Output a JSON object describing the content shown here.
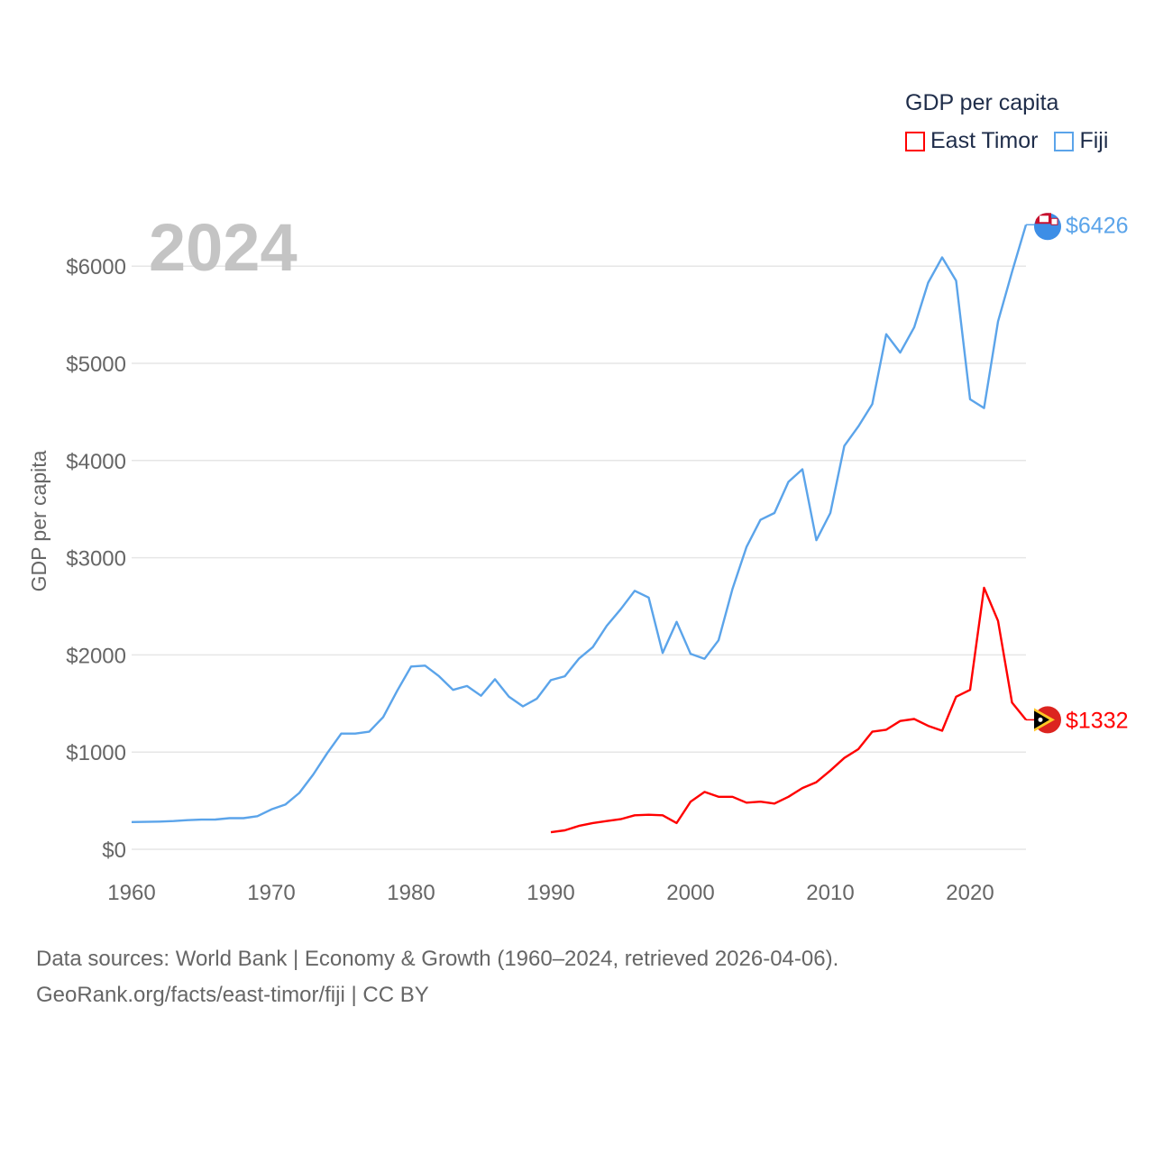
{
  "chart_data": {
    "type": "line",
    "title": "GDP per capita",
    "ylabel": "GDP per capita",
    "xlabel": "",
    "year_label": "2024",
    "xlim": [
      1960,
      2024
    ],
    "ylim": [
      0,
      6500
    ],
    "x_ticks": [
      "1960",
      "1970",
      "1980",
      "1990",
      "2000",
      "2010",
      "2020"
    ],
    "y_ticks": [
      "$0",
      "$1000",
      "$2000",
      "$3000",
      "$4000",
      "$5000",
      "$6000"
    ],
    "grid": true,
    "legend_placement": "top-right",
    "series": [
      {
        "name": "East Timor",
        "color": "#ff0000",
        "start_year": 1990,
        "end_label": "$1332",
        "values": [
          175,
          195,
          240,
          270,
          290,
          310,
          350,
          355,
          350,
          270,
          490,
          590,
          540,
          540,
          480,
          490,
          470,
          540,
          630,
          690,
          810,
          940,
          1030,
          1210,
          1230,
          1320,
          1340,
          1270,
          1220,
          1570,
          1640,
          2690,
          2350,
          1510,
          1332
        ]
      },
      {
        "name": "Fiji",
        "color": "#5ba4ea",
        "start_year": 1960,
        "end_label": "$6426",
        "values": [
          280,
          282,
          285,
          290,
          300,
          305,
          306,
          320,
          320,
          340,
          410,
          460,
          580,
          770,
          990,
          1190,
          1190,
          1210,
          1360,
          1630,
          1880,
          1890,
          1780,
          1640,
          1680,
          1580,
          1750,
          1570,
          1470,
          1550,
          1740,
          1780,
          1960,
          2080,
          2300,
          2470,
          2660,
          2590,
          2020,
          2340,
          2010,
          1960,
          2150,
          2680,
          3110,
          3390,
          3460,
          3780,
          3910,
          3180,
          3460,
          4150,
          4350,
          4580,
          5300,
          5110,
          5370,
          5830,
          6090,
          5850,
          4630,
          4540,
          5430,
          5940,
          6426
        ]
      }
    ]
  },
  "legend": {
    "title": "GDP per capita",
    "items": [
      "East Timor",
      "Fiji"
    ]
  },
  "footer": {
    "line1": "Data sources: World Bank | Economy & Growth (1960–2024, retrieved 2026-04-06).",
    "line2": "GeoRank.org/facts/east-timor/fiji | CC BY"
  }
}
